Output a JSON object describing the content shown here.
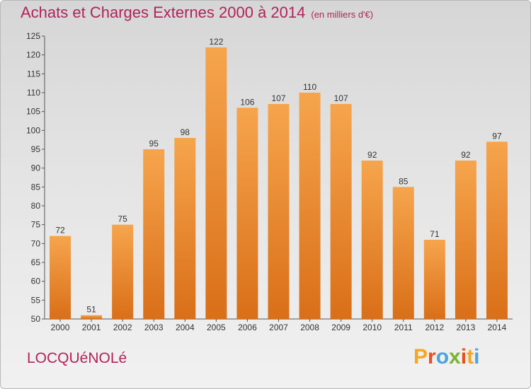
{
  "header": {
    "title": "Achats et Charges Externes 2000 à 2014",
    "subtitle": "(en milliers d'€)"
  },
  "footer": {
    "location": "LOCQUéNOLé",
    "logo_letters": [
      "P",
      "r",
      "o",
      "x",
      "i",
      "t",
      "i"
    ],
    "logo_colors": [
      "#f5a623",
      "#e94e1b",
      "#4aa3df",
      "#7bb32e",
      "#e94e1b",
      "#f5a623",
      "#4aa3df"
    ]
  },
  "colors": {
    "bar_top": "#f6a54d",
    "bar_bottom": "#d96f18",
    "title": "#b0245a"
  },
  "chart_data": {
    "type": "bar",
    "title": "Achats et Charges Externes 2000 à 2014",
    "xlabel": "",
    "ylabel": "",
    "categories": [
      "2000",
      "2001",
      "2002",
      "2003",
      "2004",
      "2005",
      "2006",
      "2007",
      "2008",
      "2009",
      "2010",
      "2011",
      "2012",
      "2013",
      "2014"
    ],
    "values": [
      72,
      51,
      75,
      95,
      98,
      122,
      106,
      107,
      110,
      107,
      92,
      85,
      71,
      92,
      97
    ],
    "ylim": [
      50,
      125
    ],
    "yticks": [
      50,
      55,
      60,
      65,
      70,
      75,
      80,
      85,
      90,
      95,
      100,
      105,
      110,
      115,
      120,
      125
    ],
    "grid": false,
    "legend": "none"
  }
}
